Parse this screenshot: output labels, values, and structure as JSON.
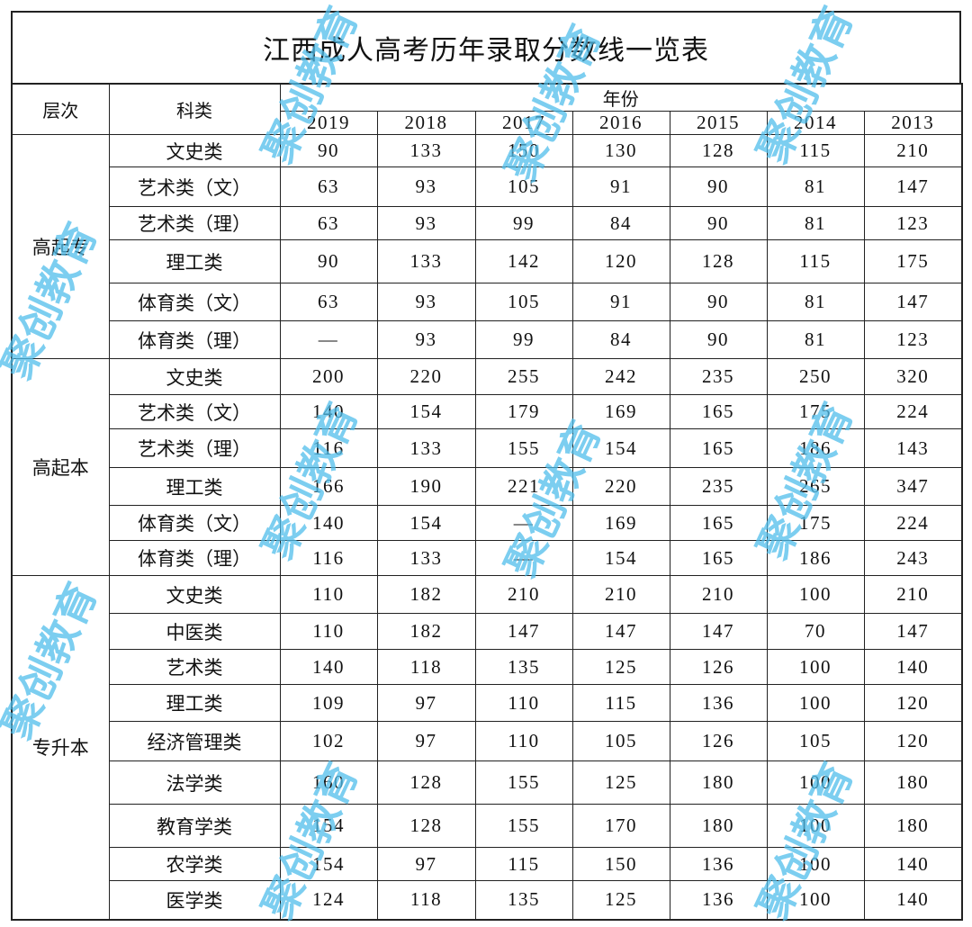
{
  "title": "江西成人高考历年录取分数线一览表",
  "headers": {
    "level": "层次",
    "category": "科类",
    "year_group": "年份",
    "years": [
      "2019",
      "2018",
      "2017",
      "2016",
      "2015",
      "2014",
      "2013"
    ]
  },
  "watermark": "聚创教育",
  "groups": [
    {
      "level": "高起专",
      "rows": [
        {
          "category": "文史类",
          "values": [
            "90",
            "133",
            "150",
            "130",
            "128",
            "115",
            "210"
          ]
        },
        {
          "category": "艺术类（文）",
          "values": [
            "63",
            "93",
            "105",
            "91",
            "90",
            "81",
            "147"
          ]
        },
        {
          "category": "艺术类（理）",
          "values": [
            "63",
            "93",
            "99",
            "84",
            "90",
            "81",
            "123"
          ]
        },
        {
          "category": "理工类",
          "values": [
            "90",
            "133",
            "142",
            "120",
            "128",
            "115",
            "175"
          ]
        },
        {
          "category": "体育类（文）",
          "values": [
            "63",
            "93",
            "105",
            "91",
            "90",
            "81",
            "147"
          ]
        },
        {
          "category": "体育类（理）",
          "values": [
            "—",
            "93",
            "99",
            "84",
            "90",
            "81",
            "123"
          ]
        }
      ]
    },
    {
      "level": "高起本",
      "rows": [
        {
          "category": "文史类",
          "values": [
            "200",
            "220",
            "255",
            "242",
            "235",
            "250",
            "320"
          ]
        },
        {
          "category": "艺术类（文）",
          "values": [
            "140",
            "154",
            "179",
            "169",
            "165",
            "175",
            "224"
          ]
        },
        {
          "category": "艺术类（理）",
          "values": [
            "116",
            "133",
            "155",
            "154",
            "165",
            "186",
            "143"
          ]
        },
        {
          "category": "理工类",
          "values": [
            "166",
            "190",
            "221",
            "220",
            "235",
            "265",
            "347"
          ]
        },
        {
          "category": "体育类（文）",
          "values": [
            "140",
            "154",
            "—",
            "169",
            "165",
            "175",
            "224"
          ]
        },
        {
          "category": "体育类（理）",
          "values": [
            "116",
            "133",
            "—",
            "154",
            "165",
            "186",
            "243"
          ]
        }
      ]
    },
    {
      "level": "专升本",
      "rows": [
        {
          "category": "文史类",
          "values": [
            "110",
            "182",
            "210",
            "210",
            "210",
            "100",
            "210"
          ]
        },
        {
          "category": "中医类",
          "values": [
            "110",
            "182",
            "147",
            "147",
            "147",
            "70",
            "147"
          ]
        },
        {
          "category": "艺术类",
          "values": [
            "140",
            "118",
            "135",
            "125",
            "126",
            "100",
            "140"
          ]
        },
        {
          "category": "理工类",
          "values": [
            "109",
            "97",
            "110",
            "115",
            "136",
            "100",
            "120"
          ]
        },
        {
          "category": "经济管理类",
          "values": [
            "102",
            "97",
            "110",
            "105",
            "126",
            "105",
            "120"
          ]
        },
        {
          "category": "法学类",
          "values": [
            "160",
            "128",
            "155",
            "125",
            "180",
            "100",
            "180"
          ]
        },
        {
          "category": "教育学类",
          "values": [
            "154",
            "128",
            "155",
            "170",
            "180",
            "100",
            "180"
          ]
        },
        {
          "category": "农学类",
          "values": [
            "154",
            "97",
            "115",
            "150",
            "136",
            "100",
            "140"
          ]
        },
        {
          "category": "医学类",
          "values": [
            "124",
            "118",
            "135",
            "125",
            "136",
            "100",
            "140"
          ]
        }
      ]
    }
  ]
}
